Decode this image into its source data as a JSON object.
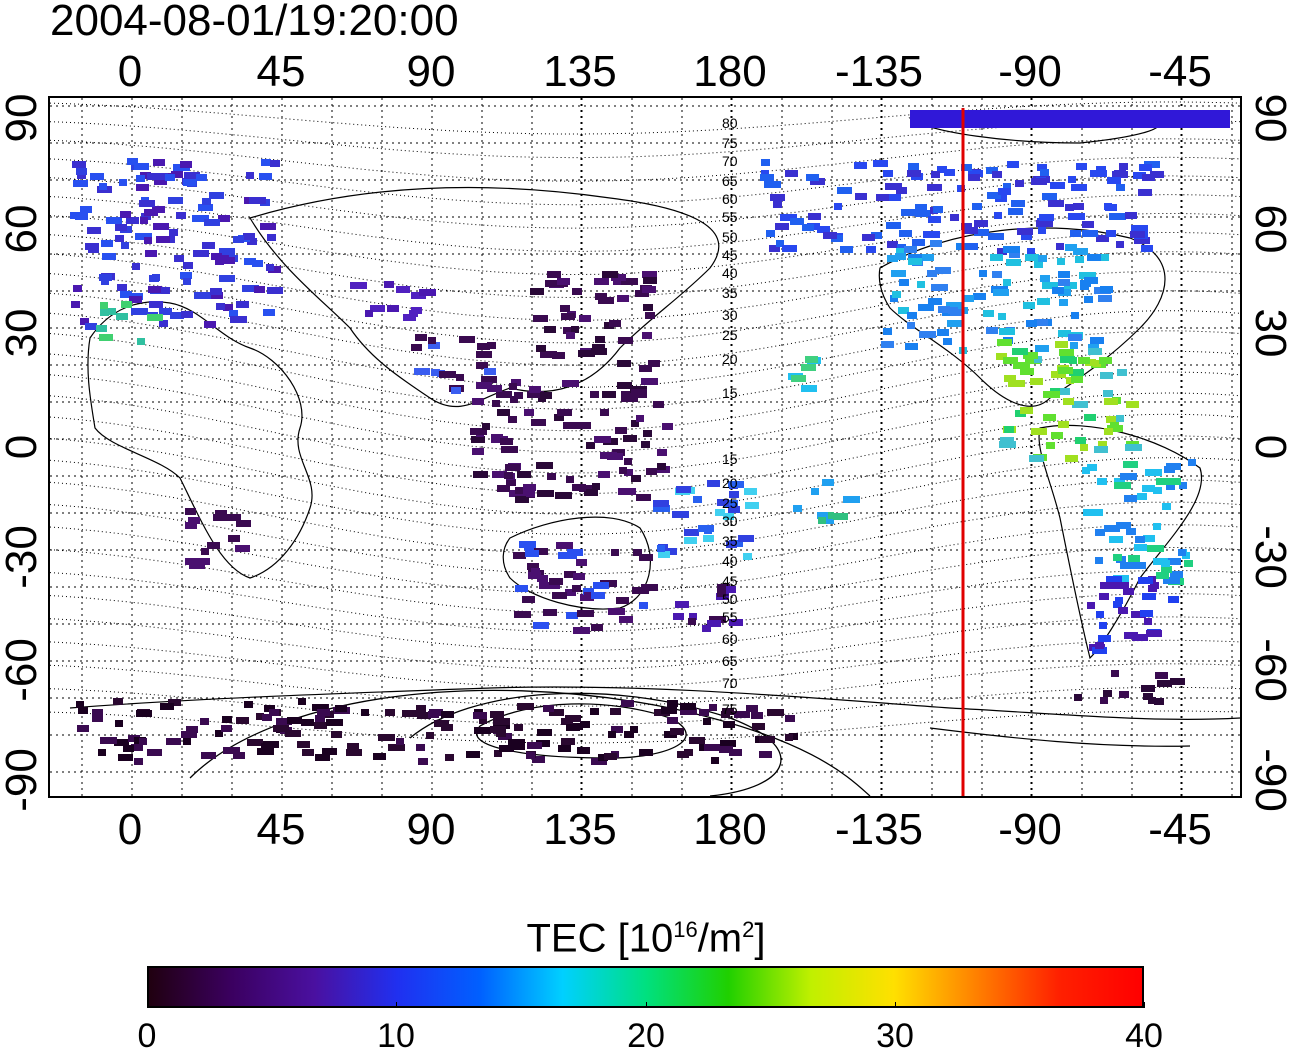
{
  "timestamp": "2004-08-01/19:20:00",
  "map": {
    "x_ticks_top": [
      "0",
      "45",
      "90",
      "135",
      "180",
      "-135",
      "-90",
      "-45"
    ],
    "x_ticks_bottom": [
      "0",
      "45",
      "90",
      "135",
      "180",
      "-135",
      "-90",
      "-45"
    ],
    "y_ticks_left": [
      "90",
      "60",
      "30",
      "0",
      "-30",
      "-60",
      "-90"
    ],
    "y_ticks_right": [
      "90",
      "60",
      "30",
      "0",
      "-30",
      "-60",
      "-90"
    ],
    "contour_labels": [
      "80",
      "75",
      "70",
      "65",
      "60",
      "55",
      "50",
      "45",
      "40",
      "35",
      "30",
      "25",
      "20",
      "15",
      "15",
      "20",
      "25",
      "30",
      "35",
      "40",
      "45",
      "50",
      "55",
      "60",
      "65",
      "70",
      "75"
    ],
    "marker_line_color": "#e00000",
    "grid": true
  },
  "colorbar": {
    "title_prefix": "TEC  [10",
    "title_sup1": "16",
    "title_mid": "/m",
    "title_sup2": "2",
    "title_suffix": "]",
    "ticks": [
      "0",
      "10",
      "20",
      "30",
      "40"
    ],
    "colors": [
      "#200010",
      "#3b0060",
      "#4a10a0",
      "#2030f0",
      "#0060ff",
      "#00d0ff",
      "#00e080",
      "#20d000",
      "#c0f000",
      "#ffe000",
      "#ff8000",
      "#ff2000",
      "#ff0000"
    ]
  }
}
